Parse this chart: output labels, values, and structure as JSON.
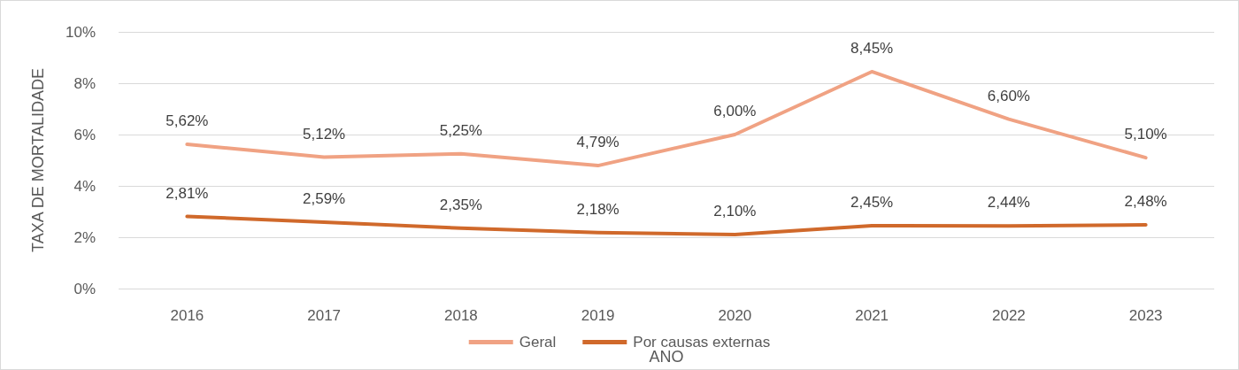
{
  "chart_data": {
    "type": "line",
    "xlabel": "ANO",
    "ylabel": "TAXA DE MORTALIDADE",
    "categories": [
      "2016",
      "2017",
      "2018",
      "2019",
      "2020",
      "2021",
      "2022",
      "2023"
    ],
    "series": [
      {
        "name": "Geral",
        "color": "#f0a283",
        "values": [
          5.62,
          5.12,
          5.25,
          4.79,
          6.0,
          8.45,
          6.6,
          5.1
        ],
        "value_labels": [
          "5,62%",
          "5,12%",
          "5,25%",
          "4,79%",
          "6,00%",
          "8,45%",
          "6,60%",
          "5,10%"
        ]
      },
      {
        "name": "Por causas externas",
        "color": "#d0692b",
        "values": [
          2.81,
          2.59,
          2.35,
          2.18,
          2.1,
          2.45,
          2.44,
          2.48
        ],
        "value_labels": [
          "2,81%",
          "2,59%",
          "2,35%",
          "2,18%",
          "2,10%",
          "2,45%",
          "2,44%",
          "2,48%"
        ]
      }
    ],
    "ylim": [
      0,
      10
    ],
    "yticks": [
      {
        "value": 0,
        "label": "0%"
      },
      {
        "value": 2,
        "label": "2%"
      },
      {
        "value": 4,
        "label": "4%"
      },
      {
        "value": 6,
        "label": "6%"
      },
      {
        "value": 8,
        "label": "8%"
      },
      {
        "value": 10,
        "label": "10%"
      }
    ],
    "grid": "y",
    "legend": "bottom",
    "marker": "none",
    "line_style": "solid"
  }
}
